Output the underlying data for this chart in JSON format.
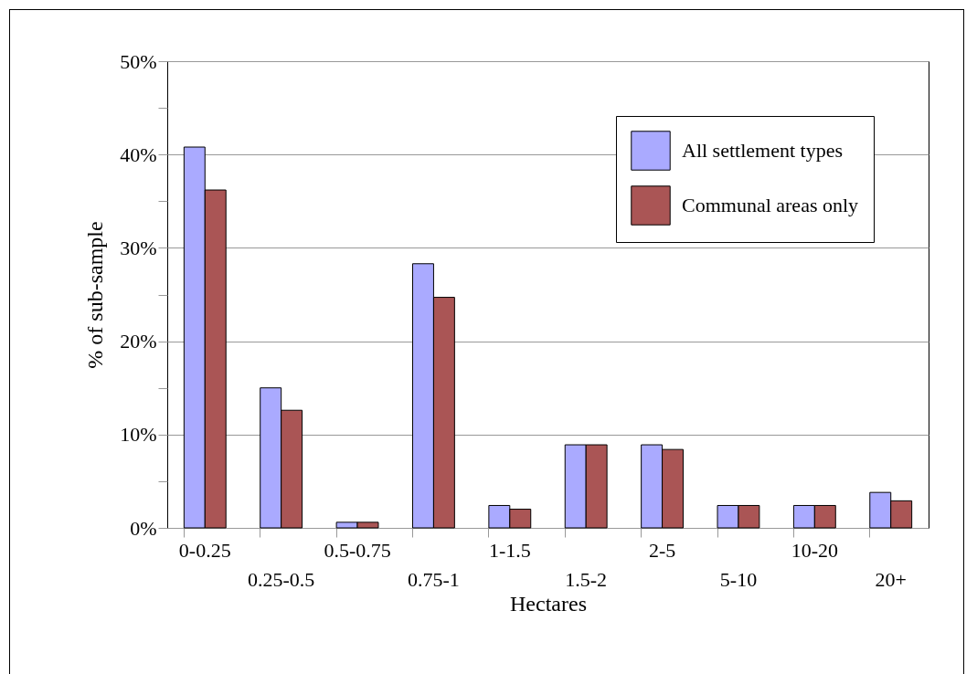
{
  "chart_data": {
    "type": "bar",
    "xlabel": "Hectares",
    "ylabel": "% of sub-sample",
    "categories": [
      "0-0.25",
      "0.25-0.5",
      "0.5-0.75",
      "0.75-1",
      "1-1.5",
      "1.5-2",
      "2-5",
      "5-10",
      "10-20",
      "20+"
    ],
    "series": [
      {
        "name": "All settlement types",
        "color": "#aaaaff",
        "values": [
          40.8,
          15.0,
          0.6,
          28.3,
          2.4,
          8.9,
          8.9,
          2.4,
          2.4,
          3.8
        ]
      },
      {
        "name": "Communal areas only",
        "color": "#aa5555",
        "values": [
          36.2,
          12.6,
          0.6,
          24.7,
          2.0,
          8.9,
          8.4,
          2.4,
          2.4,
          2.9
        ]
      }
    ],
    "ylim": [
      0,
      50
    ],
    "yticks": [
      {
        "value": 0,
        "label": "0%"
      },
      {
        "value": 5,
        "label": null
      },
      {
        "value": 10,
        "label": "10%"
      },
      {
        "value": 15,
        "label": null
      },
      {
        "value": 20,
        "label": "20%"
      },
      {
        "value": 25,
        "label": null
      },
      {
        "value": 30,
        "label": "30%"
      },
      {
        "value": 35,
        "label": null
      },
      {
        "value": 40,
        "label": "40%"
      },
      {
        "value": 45,
        "label": null
      },
      {
        "value": 50,
        "label": "50%"
      }
    ],
    "grid": "y",
    "legend": "top right"
  }
}
